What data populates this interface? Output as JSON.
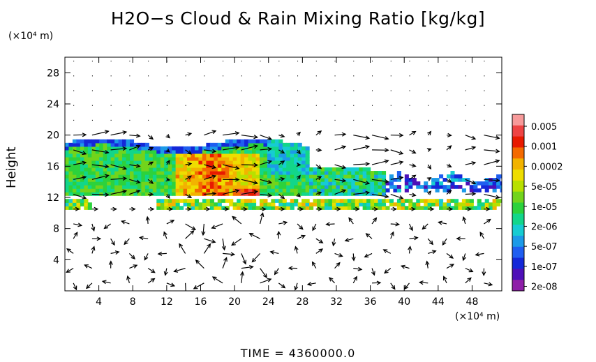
{
  "chart_data": {
    "type": "heatmap",
    "title": "H2O−s Cloud & Rain Mixing Ratio [kg/kg]",
    "ylabel": "Height",
    "y_unit": "(×10⁴ m)",
    "x_unit": "(×10⁴ m)",
    "xlim": [
      0,
      51.5
    ],
    "ylim": [
      0,
      30
    ],
    "x_ticks": [
      "4",
      "8",
      "12",
      "16",
      "20",
      "24",
      "28",
      "32",
      "36",
      "40",
      "44",
      "48"
    ],
    "y_ticks": [
      "4",
      "8",
      "12",
      "16",
      "20",
      "24",
      "28"
    ],
    "x_tick_values": [
      4,
      8,
      12,
      16,
      20,
      24,
      28,
      32,
      36,
      40,
      44,
      48
    ],
    "y_tick_values": [
      4,
      8,
      12,
      16,
      20,
      24,
      28
    ],
    "colorbar": {
      "labels": [
        "0.005",
        "0.001",
        "0.0002",
        "5e-05",
        "1e-05",
        "2e-06",
        "5e-07",
        "1e-07",
        "2e-08"
      ],
      "colors": [
        "#f79a9a",
        "#ee4444",
        "#e81a00",
        "#f46a00",
        "#f2b300",
        "#eedd00",
        "#b8e000",
        "#72d41c",
        "#2cd23c",
        "#12d68a",
        "#16ccd2",
        "#1c9ae8",
        "#1f5ef0",
        "#1428d8",
        "#4e10b8",
        "#8e1ea8"
      ]
    },
    "regions": [
      {
        "name": "cloud-main",
        "x0": 0,
        "x1": 29,
        "y0": 13,
        "y1": 19.5,
        "level": 6
      },
      {
        "name": "cloud-core",
        "x0": 14,
        "x1": 23,
        "y0": 11.5,
        "y1": 18,
        "level": 3
      },
      {
        "name": "cloud-right",
        "x0": 29,
        "x1": 51,
        "y0": 12,
        "y1": 17,
        "level": 9
      },
      {
        "name": "band-11km",
        "x0": 0,
        "x1": 51,
        "y0": 10.8,
        "y1": 11.8,
        "level": 5
      }
    ],
    "grid": false,
    "legend_placement": "right"
  },
  "time_label": "TIME  =  4360000.0"
}
